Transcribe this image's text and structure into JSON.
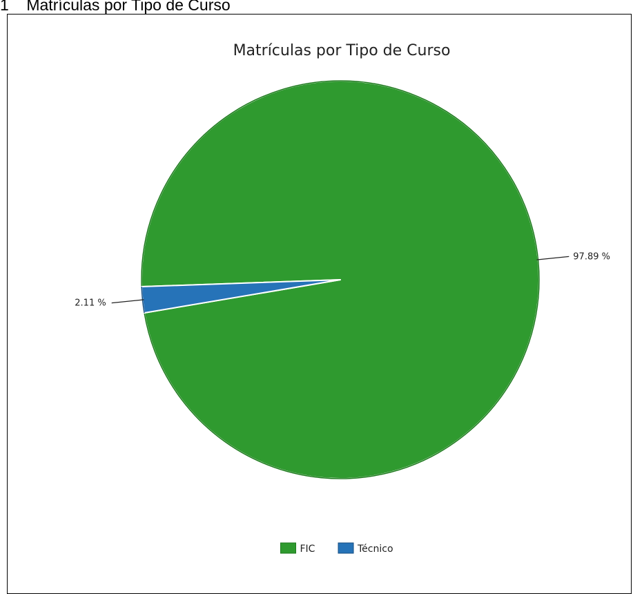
{
  "document": {
    "caption": "1    Matrículas por Tipo de Curso"
  },
  "chart_data": {
    "type": "pie",
    "title": "Matrículas por Tipo de Curso",
    "slices": [
      {
        "name": "FIC",
        "value": 97.89,
        "label": "97.89 %",
        "color": "#2f9a2f"
      },
      {
        "name": "Técnico",
        "value": 2.11,
        "label": "2.11 %",
        "color": "#2673b8"
      }
    ],
    "legend_position": "bottom-center"
  }
}
